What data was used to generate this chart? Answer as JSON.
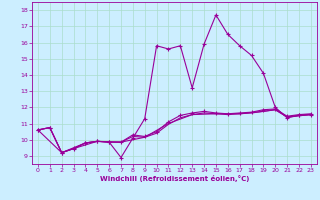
{
  "xlabel": "Windchill (Refroidissement éolien,°C)",
  "bg_color": "#cceeff",
  "line_color": "#990099",
  "xlim": [
    -0.5,
    23.5
  ],
  "ylim": [
    8.5,
    18.5
  ],
  "xticks": [
    0,
    1,
    2,
    3,
    4,
    5,
    6,
    7,
    8,
    9,
    10,
    11,
    12,
    13,
    14,
    15,
    16,
    17,
    18,
    19,
    20,
    21,
    22,
    23
  ],
  "yticks": [
    9,
    10,
    11,
    12,
    13,
    14,
    15,
    16,
    17,
    18
  ],
  "series1_x": [
    0,
    1,
    2,
    3,
    4,
    5,
    6,
    7,
    8,
    9,
    10,
    11,
    12,
    13,
    14,
    15,
    16,
    17,
    18,
    19,
    20,
    21,
    22,
    23
  ],
  "series1_y": [
    10.6,
    10.75,
    9.2,
    9.5,
    9.8,
    9.9,
    9.85,
    8.9,
    10.1,
    11.3,
    15.8,
    15.6,
    15.8,
    13.2,
    15.9,
    17.7,
    16.5,
    15.8,
    15.2,
    14.1,
    12.0,
    11.35,
    11.5,
    11.55
  ],
  "series2_x": [
    0,
    1,
    2,
    3,
    4,
    5,
    6,
    7,
    8,
    9,
    10,
    11,
    12,
    13,
    14,
    15,
    16,
    17,
    18,
    19,
    20,
    21,
    22,
    23
  ],
  "series2_y": [
    10.6,
    10.75,
    9.2,
    9.45,
    9.8,
    9.9,
    9.85,
    9.85,
    10.3,
    10.2,
    10.5,
    11.1,
    11.5,
    11.65,
    11.75,
    11.65,
    11.6,
    11.65,
    11.7,
    11.85,
    11.9,
    11.45,
    11.55,
    11.6
  ],
  "series3_x": [
    0,
    2,
    3,
    4,
    5,
    6,
    7,
    8,
    9,
    10,
    11,
    12,
    13,
    14,
    15,
    16,
    17,
    18,
    19,
    20,
    21,
    22,
    23
  ],
  "series3_y": [
    10.6,
    9.2,
    9.45,
    9.8,
    9.9,
    9.85,
    9.85,
    10.2,
    10.15,
    10.4,
    10.95,
    11.35,
    11.55,
    11.65,
    11.6,
    11.55,
    11.6,
    11.65,
    11.75,
    11.85,
    11.4,
    11.5,
    11.55
  ],
  "series4_x": [
    0,
    1,
    2,
    3,
    5,
    7,
    9,
    11,
    13,
    15,
    17,
    19,
    20,
    21,
    23
  ],
  "series4_y": [
    10.6,
    10.75,
    9.2,
    9.45,
    9.9,
    9.85,
    10.15,
    11.0,
    11.55,
    11.6,
    11.6,
    11.75,
    11.85,
    11.4,
    11.55
  ],
  "grid_color": "#aaddcc"
}
